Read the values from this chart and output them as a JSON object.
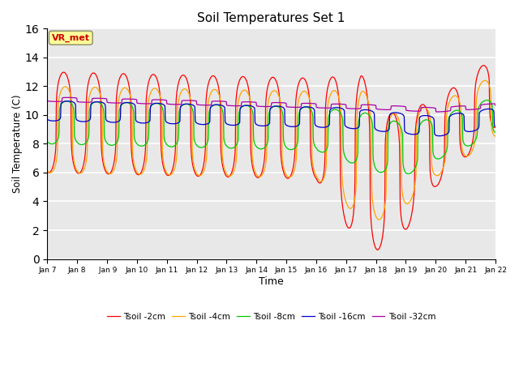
{
  "title": "Soil Temperatures Set 1",
  "xlabel": "Time",
  "ylabel": "Soil Temperature (C)",
  "ylim": [
    0,
    16
  ],
  "yticks": [
    0,
    2,
    4,
    6,
    8,
    10,
    12,
    14,
    16
  ],
  "x_labels": [
    "Jan 7",
    "Jan 8",
    " Jan 9",
    "Jan 10",
    "Jan 11",
    "Jan 12",
    "Jan 13",
    "Jan 14",
    "Jan 15",
    "Jan 16",
    "Jan 17",
    "Jan 18",
    "Jan 19",
    "Jan 20",
    "Jan 21",
    "Jan 22"
  ],
  "colors": {
    "Tsoil -2cm": "#ff0000",
    "Tsoil -4cm": "#ffa500",
    "Tsoil -8cm": "#00cc00",
    "Tsoil -16cm": "#0000cc",
    "Tsoil -32cm": "#aa00aa"
  },
  "background_color": "#e8e8e8",
  "annotation_text": "VR_met",
  "n_points": 1440,
  "legend_ncol": 5
}
